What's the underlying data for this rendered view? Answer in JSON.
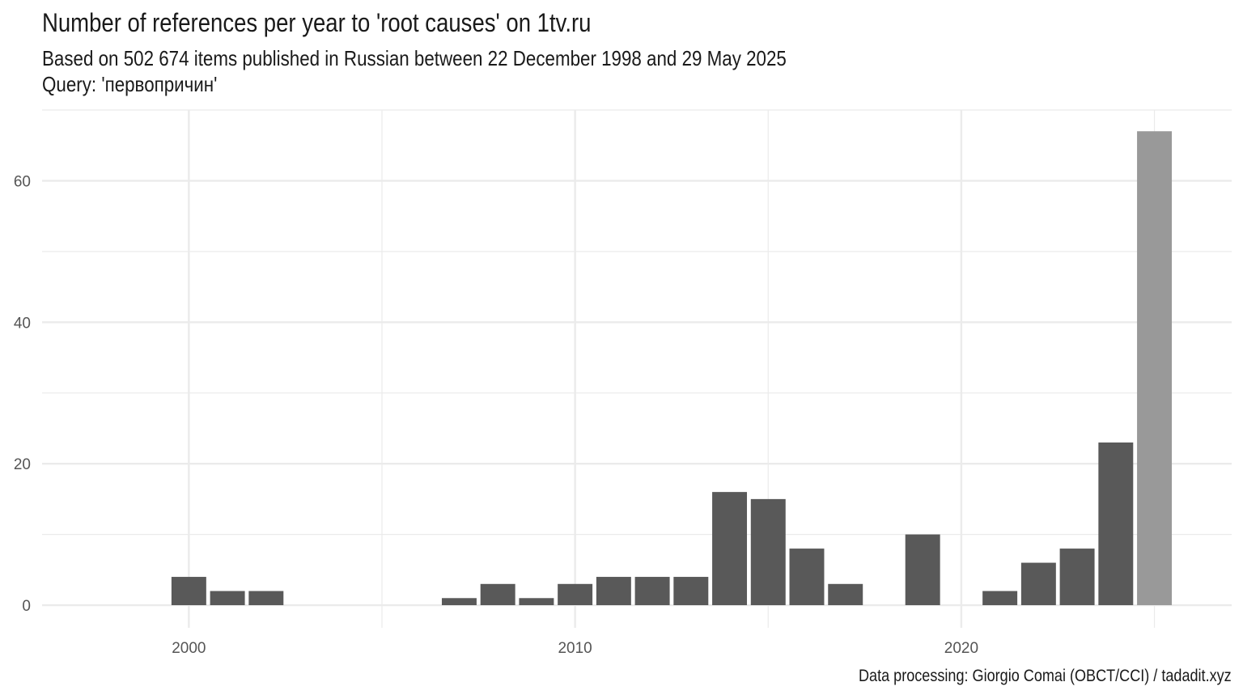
{
  "chart_data": {
    "type": "bar",
    "title": "Number of references per year to 'root causes' on 1tv.ru",
    "subtitle_lines": [
      "Based on 502 674 items published in Russian between 22 December 1998 and 29 May 2025",
      "Query: 'первопричин'"
    ],
    "caption": "Data processing: Giorgio Comai (OBCT/CCI) / tadadit.xyz",
    "xlabel": "",
    "ylabel": "",
    "xlim": [
      1996.2,
      2027.0
    ],
    "ylim": [
      -3.2,
      70
    ],
    "x_ticks": [
      2000,
      2010,
      2020
    ],
    "y_ticks": [
      0,
      20,
      40,
      60
    ],
    "grid": true,
    "legend": "none",
    "bar_color": "#595959",
    "highlight_color": "#999999",
    "gridline_color": "#ebebeb",
    "years": [
      2000,
      2001,
      2002,
      2007,
      2008,
      2009,
      2010,
      2011,
      2012,
      2013,
      2014,
      2015,
      2016,
      2017,
      2019,
      2021,
      2022,
      2023,
      2024,
      2025
    ],
    "values": [
      4,
      2,
      2,
      1,
      3,
      1,
      3,
      4,
      4,
      4,
      16,
      15,
      8,
      3,
      10,
      2,
      6,
      8,
      23,
      67
    ],
    "highlighted_years": [
      2025
    ]
  }
}
